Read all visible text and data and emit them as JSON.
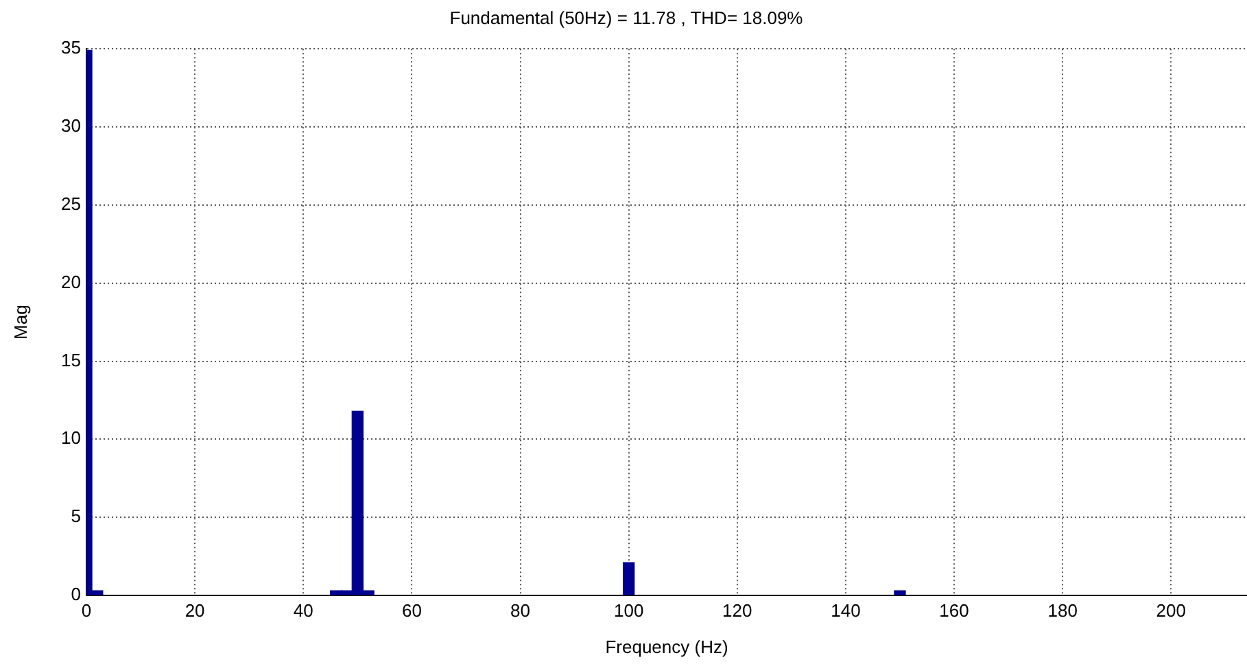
{
  "chart_data": {
    "type": "bar",
    "title": "Fundamental (50Hz) = 11.78 , THD= 18.09%",
    "xlabel": "Frequency (Hz)",
    "ylabel": "Mag",
    "color": "#000090",
    "x": [
      0,
      2,
      46,
      48,
      50,
      52,
      100,
      150
    ],
    "values": [
      34.9,
      0.3,
      0.3,
      0.3,
      11.8,
      0.3,
      2.1,
      0.3
    ],
    "xlim": [
      0,
      214
    ],
    "xticks": [
      0,
      20,
      40,
      60,
      80,
      100,
      120,
      140,
      160,
      180,
      200
    ],
    "ylim": [
      0,
      35
    ],
    "yticks": [
      0,
      5,
      10,
      15,
      20,
      25,
      30,
      35
    ],
    "grid": true,
    "legend": false
  }
}
